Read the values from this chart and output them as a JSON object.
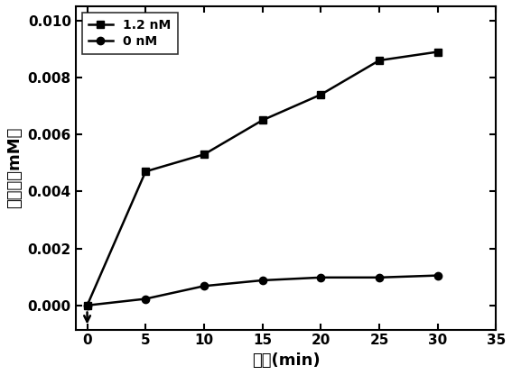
{
  "series": [
    {
      "label": "1.2 nM",
      "x": [
        0,
        5,
        10,
        15,
        20,
        25,
        30
      ],
      "y": [
        0.0,
        0.0047,
        0.0053,
        0.0065,
        0.0074,
        0.0086,
        0.0089
      ],
      "marker": "s",
      "color": "#000000",
      "linewidth": 1.8,
      "markersize": 6
    },
    {
      "label": "0 nM",
      "x": [
        0,
        5,
        10,
        15,
        20,
        25,
        30
      ],
      "y": [
        0.0,
        0.00023,
        0.00068,
        0.00088,
        0.00098,
        0.00098,
        0.00105
      ],
      "marker": "o",
      "color": "#000000",
      "linewidth": 1.8,
      "markersize": 6
    }
  ],
  "xlabel": "时间(min)",
  "ylabel": "溶解氧（mM）",
  "xlim": [
    -1,
    35
  ],
  "ylim": [
    -0.00085,
    0.0105
  ],
  "xticks": [
    0,
    5,
    10,
    15,
    20,
    25,
    30,
    35
  ],
  "yticks": [
    0.0,
    0.002,
    0.004,
    0.006,
    0.008,
    0.01
  ],
  "legend_loc": "upper left",
  "background_color": "#ffffff",
  "tick_fontsize": 11,
  "label_fontsize": 13,
  "legend_fontsize": 10
}
